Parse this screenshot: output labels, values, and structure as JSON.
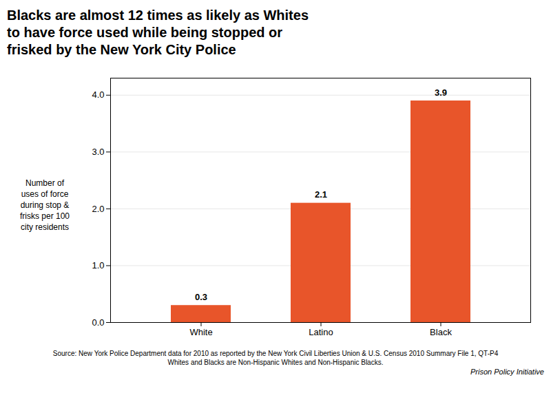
{
  "chart_data": {
    "type": "bar",
    "title": "Blacks are almost 12 times as likely as Whites\nto have force used while being stopped or\nfrisked by the New York City Police",
    "ylabel": "Number of\nuses of force\nduring stop &\nfrisks per 100\ncity residents",
    "categories": [
      "White",
      "Latino",
      "Black"
    ],
    "values": [
      0.3,
      2.1,
      3.9
    ],
    "color": "#E8552A",
    "ylim": [
      0,
      4.3
    ],
    "yticks": [
      0,
      1,
      2,
      3,
      4
    ],
    "grid": true,
    "data_labels": true,
    "annotations": [
      "Source: New York Police Department data for 2010 as reported by the New York Civil Liberties Union & U.S. Census 2010 Summary File 1, QT-P4",
      "Whites and Blacks are Non-Hispanic Whites and Non-Hispanic Blacks.",
      "Prison Policy Initiative"
    ]
  }
}
